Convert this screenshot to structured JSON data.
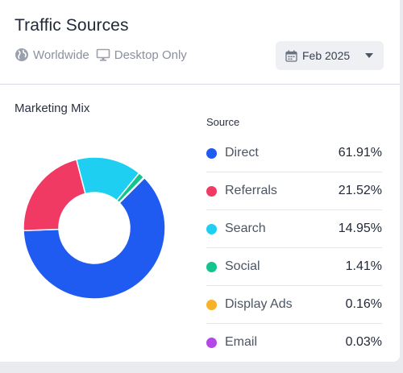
{
  "header": {
    "title": "Traffic Sources",
    "region_label": "Worldwide",
    "device_label": "Desktop Only",
    "date_label": "Feb 2025"
  },
  "widget": {
    "title": "Marketing Mix",
    "legend_header": "Source"
  },
  "icons": {
    "region": "globe-icon",
    "device": "monitor-icon",
    "date": "calendar-icon",
    "dropdown": "chevron-down-icon"
  },
  "chart_data": {
    "type": "pie",
    "categories": [
      "Direct",
      "Referrals",
      "Search",
      "Social",
      "Display Ads",
      "Email"
    ],
    "values": [
      61.91,
      21.52,
      14.95,
      1.41,
      0.16,
      0.03
    ],
    "value_labels": [
      "61.91%",
      "21.52%",
      "14.95%",
      "1.41%",
      "0.16%",
      "0.03%"
    ],
    "colors": [
      "#1f5bf0",
      "#f03a64",
      "#1fcff2",
      "#12c48e",
      "#f7b227",
      "#b447e8"
    ],
    "unit": "%"
  }
}
